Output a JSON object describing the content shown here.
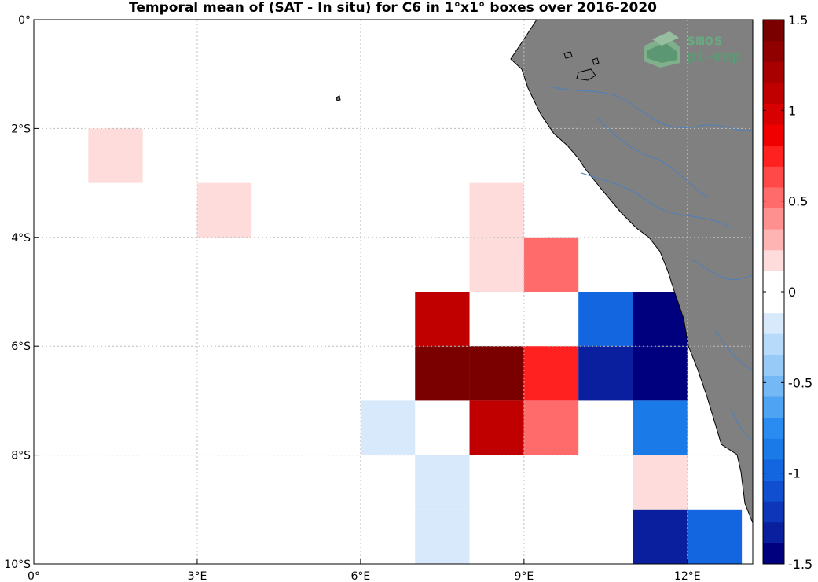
{
  "title": "Temporal mean of (SAT - In situ) for C6 in 1°x1° boxes over 2016-2020",
  "logo": {
    "line1": "smos",
    "line2": "pi-mep",
    "icon": "smos-pimep-logo-icon"
  },
  "colors": {
    "land": "#808080",
    "coast": "#000000",
    "river": "#4a7fc0",
    "grid": "#bdbdbd"
  },
  "chart_data": {
    "type": "heatmap",
    "lon_range": [
      0,
      13.2
    ],
    "lat_range": [
      -10,
      0
    ],
    "x_ticks": [
      {
        "value": 0,
        "label": "0°"
      },
      {
        "value": 3,
        "label": "3°E"
      },
      {
        "value": 6,
        "label": "6°E"
      },
      {
        "value": 9,
        "label": "9°E"
      },
      {
        "value": 12,
        "label": "12°E"
      }
    ],
    "y_ticks": [
      {
        "value": 0,
        "label": "0°"
      },
      {
        "value": -2,
        "label": "2°S"
      },
      {
        "value": -4,
        "label": "4°S"
      },
      {
        "value": -6,
        "label": "6°S"
      },
      {
        "value": -8,
        "label": "8°S"
      },
      {
        "value": -10,
        "label": "10°S"
      }
    ],
    "grid": true,
    "colorbar": {
      "range": [
        -1.5,
        1.5
      ],
      "tick_labels": [
        "1.5",
        "1",
        "0.5",
        "0",
        "-0.5",
        "-1",
        "-1.5"
      ],
      "colors": [
        "#00007f",
        "#0a1f9e",
        "#0d36b8",
        "#1050d0",
        "#1466e0",
        "#1a7ae8",
        "#2a8cf0",
        "#4ea3f2",
        "#74b8f5",
        "#98caf8",
        "#b8dafa",
        "#d8e9fc",
        "#ffffff",
        "#ffffff",
        "#ffdcdc",
        "#ffb4b4",
        "#ff9090",
        "#ff6a6a",
        "#ff4848",
        "#ff2020",
        "#f00000",
        "#d80000",
        "#c00000",
        "#a80000",
        "#900000",
        "#7a0000"
      ]
    },
    "cells": [
      {
        "lon": 2,
        "lat": -1,
        "value": -0.1
      },
      {
        "lon": 5,
        "lat": -1,
        "value": -0.1
      },
      {
        "lon": 0,
        "lat": -2,
        "value": 0.1
      },
      {
        "lon": 1,
        "lat": -2,
        "value": 0.2
      },
      {
        "lon": 5,
        "lat": -2,
        "value": 0.1
      },
      {
        "lon": 7,
        "lat": -2,
        "value": 0.1
      },
      {
        "lon": 8,
        "lat": -2,
        "value": 0.1
      },
      {
        "lon": 3,
        "lat": -3,
        "value": 0.2
      },
      {
        "lon": 4,
        "lat": -3,
        "value": 0.1
      },
      {
        "lon": 8,
        "lat": -3,
        "value": 0.2
      },
      {
        "lon": 5,
        "lat": -4,
        "value": 0.1
      },
      {
        "lon": 6,
        "lat": -4,
        "value": 0.1
      },
      {
        "lon": 7,
        "lat": -4,
        "value": 0.1
      },
      {
        "lon": 8,
        "lat": -4,
        "value": 0.2
      },
      {
        "lon": 9,
        "lat": -4,
        "value": 0.5
      },
      {
        "lon": 7,
        "lat": -5,
        "value": 1.1
      },
      {
        "lon": 9,
        "lat": -5,
        "value": -0.1
      },
      {
        "lon": 10,
        "lat": -5,
        "value": -1.0
      },
      {
        "lon": 11,
        "lat": -5,
        "value": -1.5
      },
      {
        "lon": 6,
        "lat": -6,
        "value": -0.1
      },
      {
        "lon": 7,
        "lat": -6,
        "value": 1.4
      },
      {
        "lon": 8,
        "lat": -6,
        "value": 1.5
      },
      {
        "lon": 9,
        "lat": -6,
        "value": 0.8
      },
      {
        "lon": 10,
        "lat": -6,
        "value": -1.3
      },
      {
        "lon": 11,
        "lat": -6,
        "value": -1.5
      },
      {
        "lon": 6,
        "lat": -7,
        "value": -0.2
      },
      {
        "lon": 8,
        "lat": -7,
        "value": 1.1
      },
      {
        "lon": 9,
        "lat": -7,
        "value": 0.5
      },
      {
        "lon": 11,
        "lat": -7,
        "value": -0.9
      },
      {
        "lon": 7,
        "lat": -8,
        "value": -0.2
      },
      {
        "lon": 9,
        "lat": -8,
        "value": 0.1
      },
      {
        "lon": 10,
        "lat": -8,
        "value": -0.1
      },
      {
        "lon": 11,
        "lat": -8,
        "value": 0.2
      },
      {
        "lon": 12,
        "lat": -8,
        "value": -0.1
      },
      {
        "lon": 7,
        "lat": -9,
        "value": -0.2
      },
      {
        "lon": 11,
        "lat": -9,
        "value": -1.3
      },
      {
        "lon": 12,
        "lat": -9,
        "value": -1.0
      }
    ]
  }
}
